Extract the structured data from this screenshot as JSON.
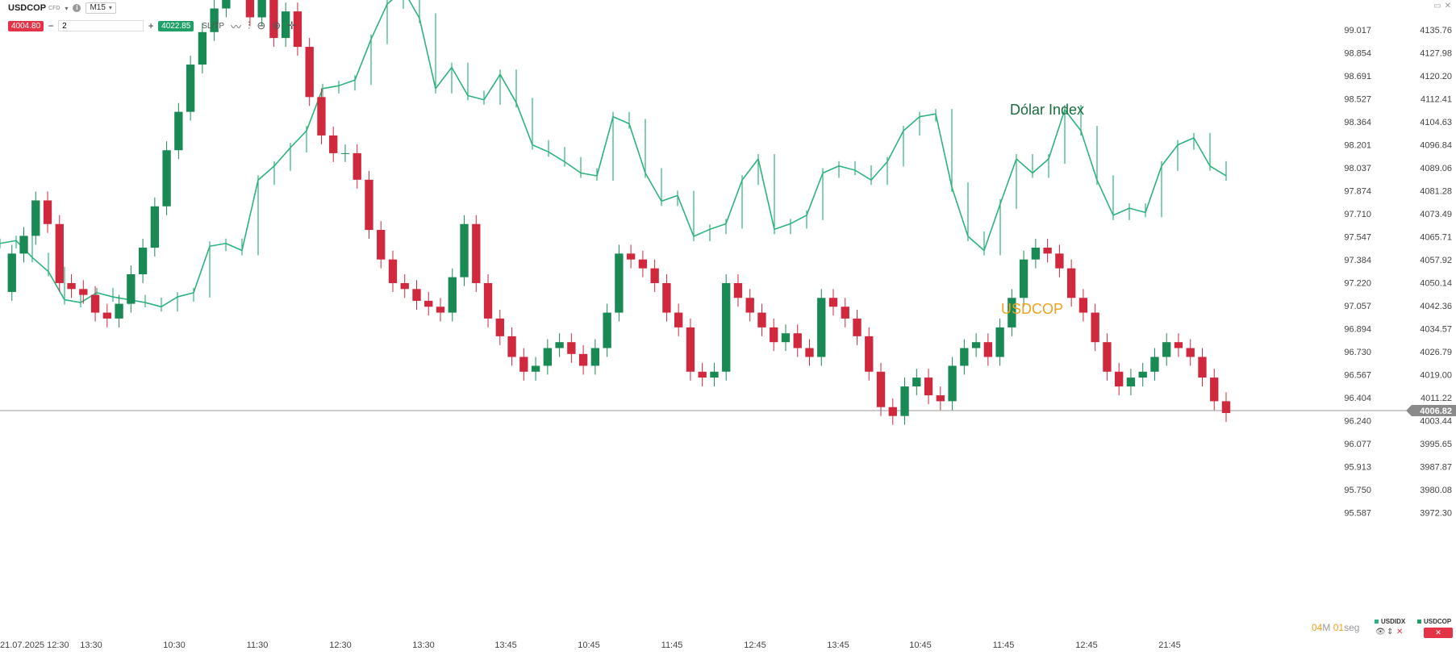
{
  "toolbar": {
    "symbol": "USDCOP",
    "symbol_tag": "CFD",
    "timeframe": "M15",
    "sell_price": "4004.80",
    "buy_price": "4022.85",
    "quantity": "2",
    "sltp_label": "SL/TP"
  },
  "chart_data": {
    "type": "candlestick",
    "annotations": [
      "Dólar Index",
      "USDCOP"
    ],
    "annotation_colors": {
      "Dólar Index": "#1a6b3c",
      "USDCOP": "#f0a020"
    },
    "last_price": "4006.82",
    "axis_left_ticks": [
      "99.017",
      "98.854",
      "98.691",
      "98.527",
      "98.364",
      "98.201",
      "98.037",
      "97.874",
      "97.710",
      "97.547",
      "97.384",
      "97.220",
      "97.057",
      "96.894",
      "96.730",
      "96.567",
      "96.404",
      "96.240",
      "96.077",
      "95.913",
      "95.750",
      "95.587"
    ],
    "axis_right_ticks": [
      "4135.76",
      "4127.98",
      "4120.20",
      "4112.41",
      "4104.63",
      "4096.84",
      "4089.06",
      "4081.28",
      "4073.49",
      "4065.71",
      "4057.92",
      "4050.14",
      "4042.36",
      "4034.57",
      "4026.79",
      "4019.00",
      "4011.22",
      "4003.44",
      "3995.65",
      "3987.87",
      "3980.08",
      "3972.30"
    ],
    "x_ticks": [
      "21.07.2025 12:30",
      "13:30",
      "10:30",
      "11:30",
      "12:30",
      "13:30",
      "13:45",
      "10:45",
      "11:45",
      "12:45",
      "13:45",
      "10:45",
      "11:45",
      "12:45",
      "21:45"
    ],
    "grid": false,
    "colors": {
      "up": "#1a8a55",
      "down": "#d0283c",
      "index": "#2db37d",
      "hline": "#999999"
    },
    "usdcop_series": [
      4047,
      4060,
      4066,
      4078,
      4070,
      4050,
      4048,
      4046,
      4040,
      4038,
      4043,
      4053,
      4062,
      4076,
      4095,
      4108,
      4124,
      4135,
      4143,
      4160,
      4152,
      4140,
      4150,
      4133,
      4142,
      4130,
      4113,
      4100,
      4094,
      4094,
      4085,
      4068,
      4058,
      4050,
      4048,
      4044,
      4042,
      4040,
      4052,
      4070,
      4050,
      4038,
      4032,
      4025,
      4020,
      4022,
      4028,
      4030,
      4026,
      4022,
      4028,
      4040,
      4060,
      4058,
      4055,
      4050,
      4040,
      4035,
      4020,
      4018,
      4020,
      4050,
      4045,
      4040,
      4035,
      4030,
      4033,
      4028,
      4025,
      4045,
      4042,
      4038,
      4032,
      4020,
      4008,
      4005,
      4015,
      4018,
      4012,
      4010,
      4022,
      4028,
      4030,
      4025,
      4035,
      4045,
      4058,
      4062,
      4060,
      4055,
      4045,
      4040,
      4030,
      4020,
      4015,
      4018,
      4020,
      4025,
      4030,
      4028,
      4025,
      4018,
      4010,
      4006
    ],
    "index_series": [
      97.5,
      97.52,
      97.4,
      97.3,
      97.1,
      97.08,
      97.15,
      97.12,
      97.1,
      97.08,
      97.05,
      97.12,
      97.15,
      97.48,
      97.5,
      97.45,
      97.95,
      98.05,
      98.18,
      98.3,
      98.6,
      98.62,
      98.66,
      98.95,
      99.2,
      99.3,
      99.1,
      98.6,
      98.75,
      98.55,
      98.52,
      98.7,
      98.5,
      98.2,
      98.15,
      98.08,
      98.0,
      97.98,
      98.4,
      98.35,
      98.0,
      97.8,
      97.84,
      97.55,
      97.6,
      97.64,
      97.95,
      98.1,
      97.6,
      97.64,
      97.7,
      98.0,
      98.05,
      98.02,
      97.95,
      98.08,
      98.3,
      98.4,
      98.42,
      97.9,
      97.55,
      97.45,
      97.78,
      98.1,
      98.0,
      98.1,
      98.45,
      98.3,
      97.95,
      97.7,
      97.75,
      97.72,
      98.05,
      98.2,
      98.25,
      98.05,
      97.98
    ]
  }
}
